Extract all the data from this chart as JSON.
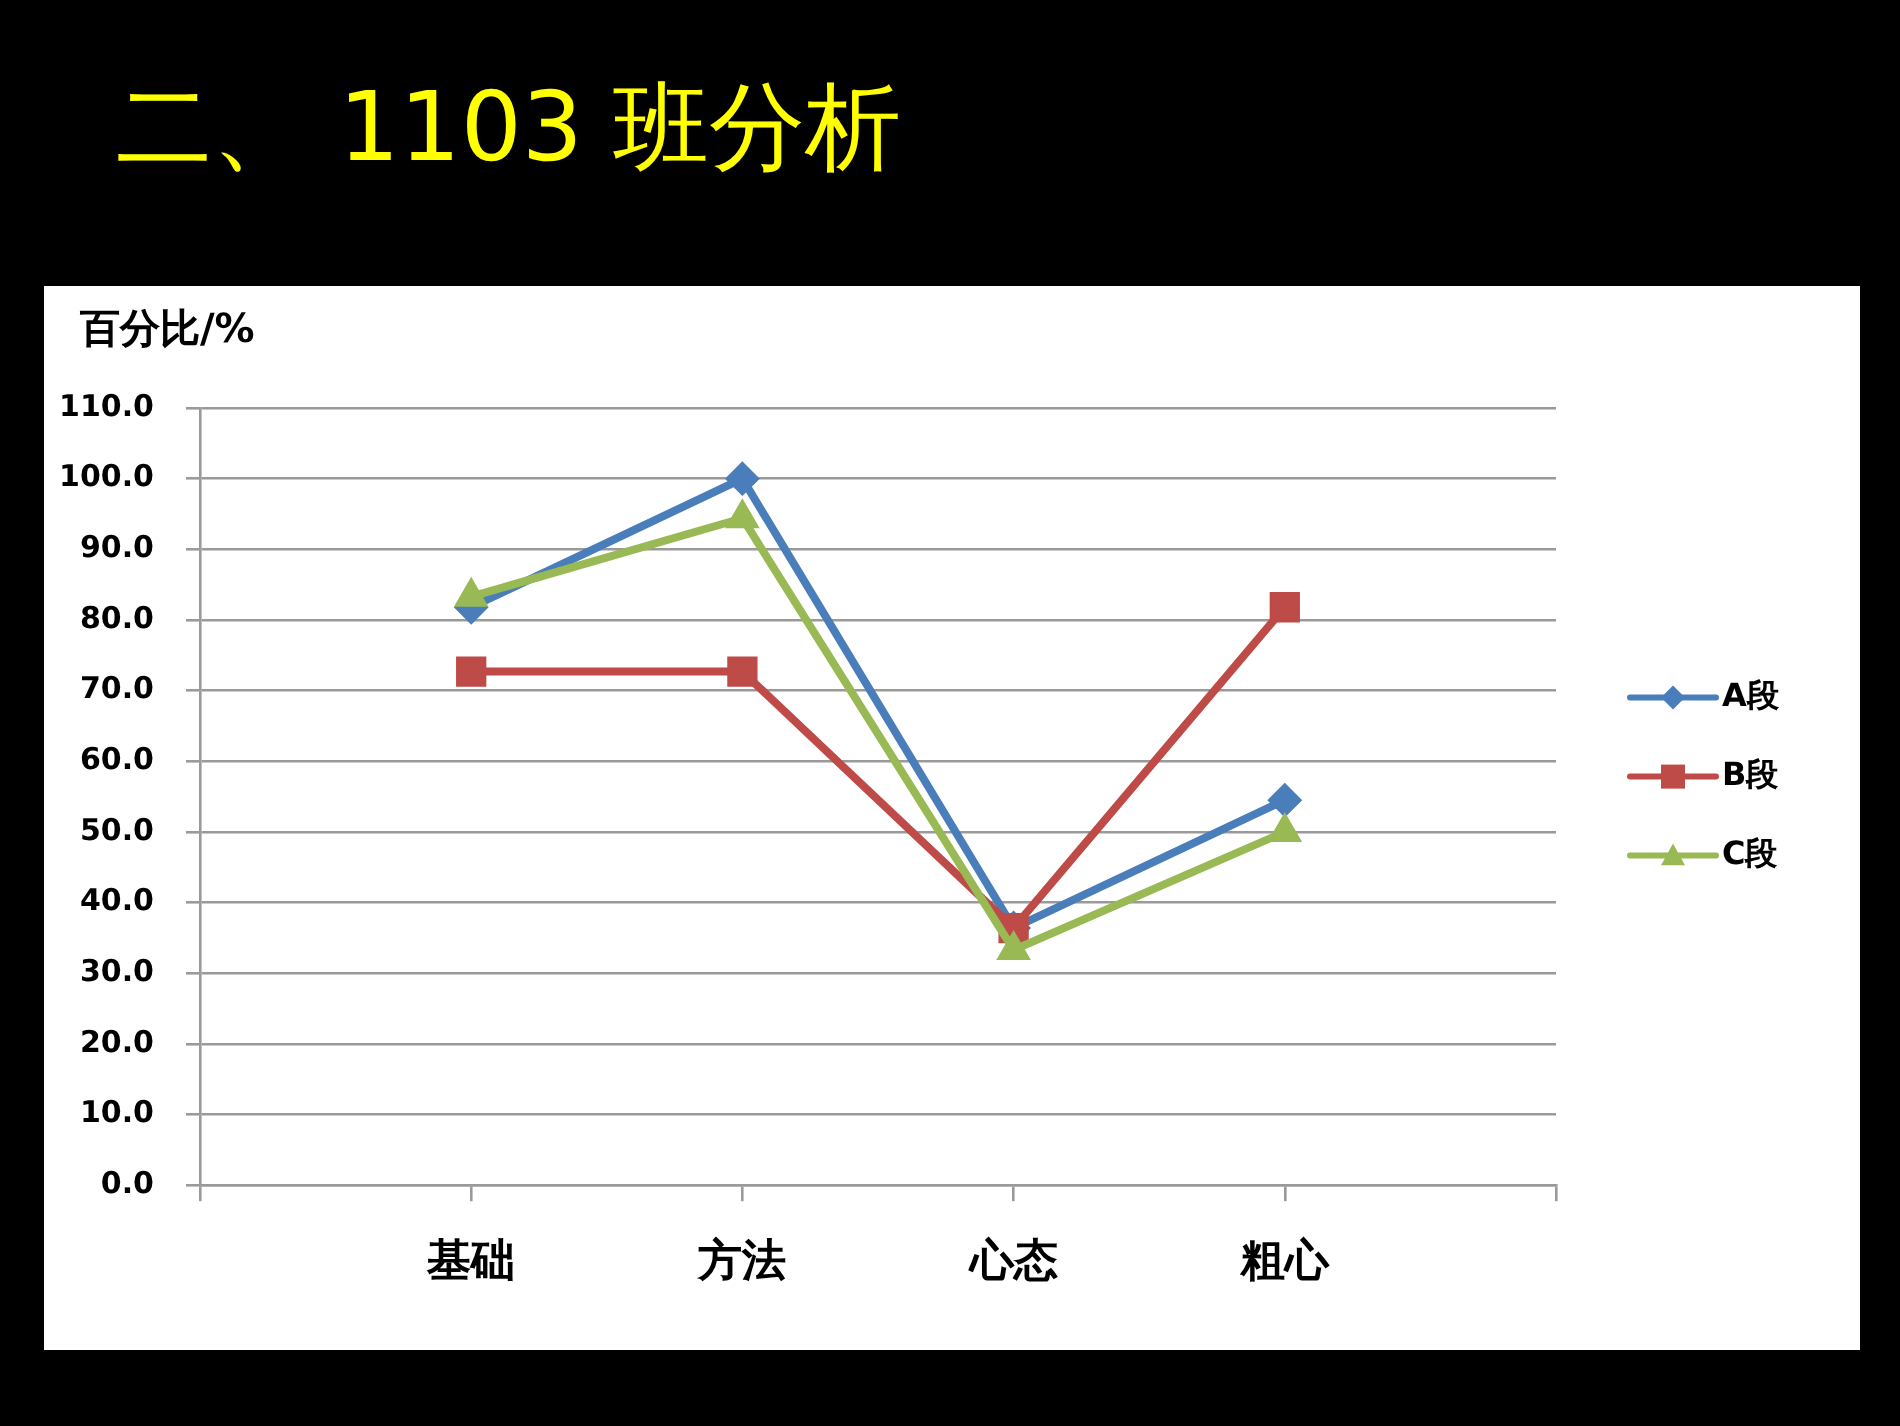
{
  "chart_data": {
    "type": "line",
    "title": "二、 1103 班分析",
    "ylabel": "百分比/%",
    "categories": [
      null,
      "基础",
      "方法",
      "心态",
      "粗心",
      null
    ],
    "series": [
      {
        "name": "A段",
        "color": "#4a7ebb",
        "marker": "diamond",
        "values": [
          null,
          81.8,
          100,
          36.4,
          54.5,
          null
        ]
      },
      {
        "name": "B段",
        "color": "#be4b48",
        "marker": "square",
        "values": [
          null,
          72.7,
          72.7,
          36.4,
          81.8,
          null
        ]
      },
      {
        "name": "C段",
        "color": "#98b954",
        "marker": "triangle",
        "values": [
          null,
          83.3,
          94.4,
          33.3,
          50.0,
          null
        ]
      }
    ],
    "ylim": [
      0,
      110
    ],
    "yticks": [
      {
        "value": 0,
        "label": "0.0"
      },
      {
        "value": 10,
        "label": "10.0"
      },
      {
        "value": 20,
        "label": "20.0"
      },
      {
        "value": 30,
        "label": "30.0"
      },
      {
        "value": 40,
        "label": "40.0"
      },
      {
        "value": 50,
        "label": "50.0"
      },
      {
        "value": 60,
        "label": "60.0"
      },
      {
        "value": 70,
        "label": "70.0"
      },
      {
        "value": 80,
        "label": "80.0"
      },
      {
        "value": 90,
        "label": "90.0"
      },
      {
        "value": 100,
        "label": "100.0"
      },
      {
        "value": 110,
        "label": "110.0"
      }
    ],
    "grid": "y",
    "legend": "right",
    "line_style": "solid"
  }
}
